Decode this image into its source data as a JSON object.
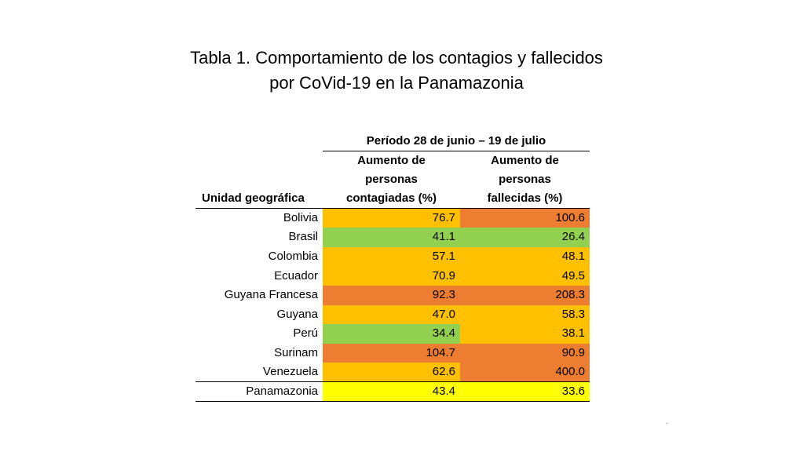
{
  "title": {
    "line1": "Tabla 1. Comportamiento de los contagios y fallecidos",
    "line2": "por CoVid-19 en la Panamazonia"
  },
  "table": {
    "period": "Período 28 de junio – 19 de julio",
    "geo_header": "Unidad geográfica",
    "col1_header": [
      "Aumento de",
      "personas",
      "contagiadas (%)"
    ],
    "col2_header": [
      "Aumento de",
      "personas",
      "fallecidas (%)"
    ],
    "rows": [
      {
        "name": "Bolivia",
        "contagiados": "76.7",
        "fallecidos": "100.6",
        "c1": "#FFC000",
        "c2": "#ED7D31"
      },
      {
        "name": "Brasil",
        "contagiados": "41.1",
        "fallecidos": "26.4",
        "c1": "#92D050",
        "c2": "#92D050"
      },
      {
        "name": "Colombia",
        "contagiados": "57.1",
        "fallecidos": "48.1",
        "c1": "#FFC000",
        "c2": "#FFC000"
      },
      {
        "name": "Ecuador",
        "contagiados": "70.9",
        "fallecidos": "49.5",
        "c1": "#FFC000",
        "c2": "#FFC000"
      },
      {
        "name": "Guyana Francesa",
        "contagiados": "92.3",
        "fallecidos": "208.3",
        "c1": "#ED7D31",
        "c2": "#ED7D31"
      },
      {
        "name": "Guyana",
        "contagiados": "47.0",
        "fallecidos": "58.3",
        "c1": "#FFC000",
        "c2": "#FFC000"
      },
      {
        "name": "Perú",
        "contagiados": "34.4",
        "fallecidos": "38.1",
        "c1": "#92D050",
        "c2": "#FFC000"
      },
      {
        "name": "Surinam",
        "contagiados": "104.7",
        "fallecidos": "90.9",
        "c1": "#ED7D31",
        "c2": "#ED7D31"
      },
      {
        "name": "Venezuela",
        "contagiados": "62.6",
        "fallecidos": "400.0",
        "c1": "#FFC000",
        "c2": "#ED7D31"
      }
    ],
    "total": {
      "name": "Panamazonia",
      "contagiados": "43.4",
      "fallecidos": "33.6",
      "c1": "#FFFF00",
      "c2": "#FFFF00"
    }
  }
}
